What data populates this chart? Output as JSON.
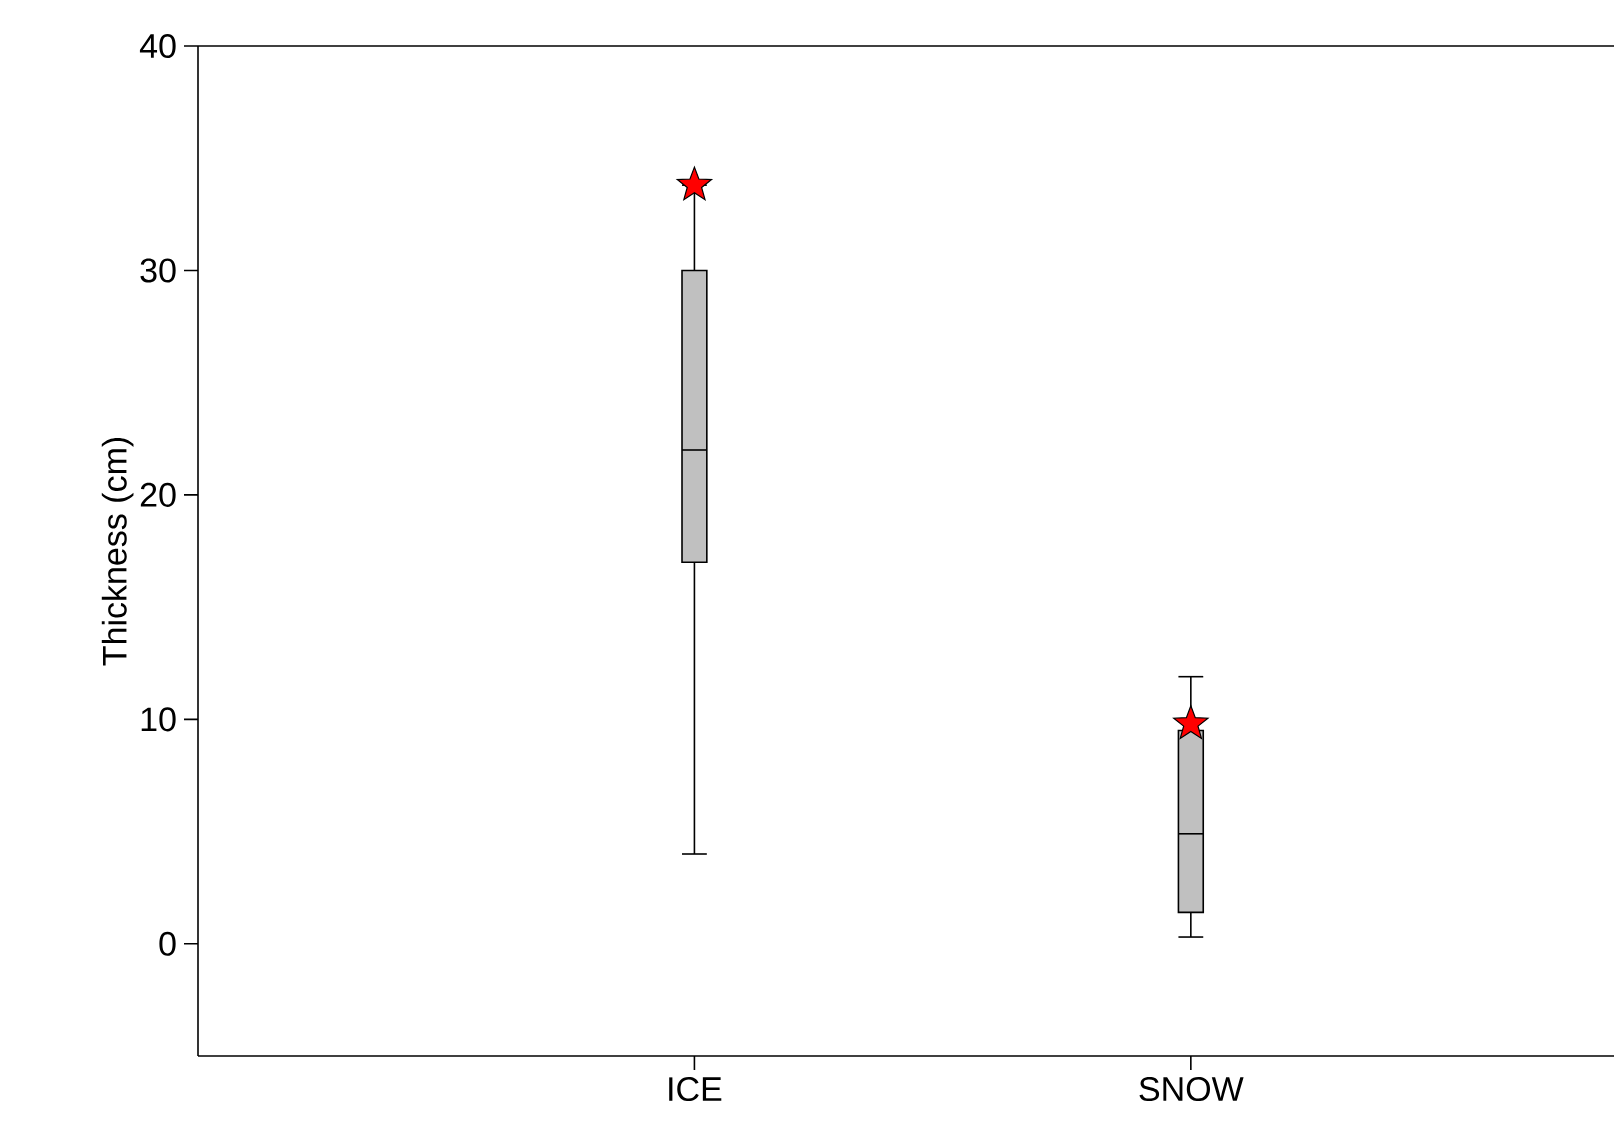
{
  "chart_data": {
    "type": "box",
    "ylabel": "Thickness (cm)",
    "categories": [
      "ICE",
      "SNOW"
    ],
    "ylim": [
      -5,
      40
    ],
    "yticks": [
      0,
      10,
      20,
      30,
      40
    ],
    "grid": false,
    "series": [
      {
        "color": "#c0c0c0",
        "boxes": [
          {
            "low": 4,
            "q1": 17,
            "median": 22,
            "q3": 30,
            "high": 33.8
          },
          {
            "low": 0.3,
            "q1": 1.4,
            "median": 4.9,
            "q3": 9.5,
            "high": 11.9
          }
        ]
      },
      {
        "type": "scatter",
        "x": [
          "ICE",
          "SNOW"
        ],
        "values": [
          33.8,
          9.8
        ],
        "color": "#ff0000",
        "marker": "star"
      }
    ]
  }
}
